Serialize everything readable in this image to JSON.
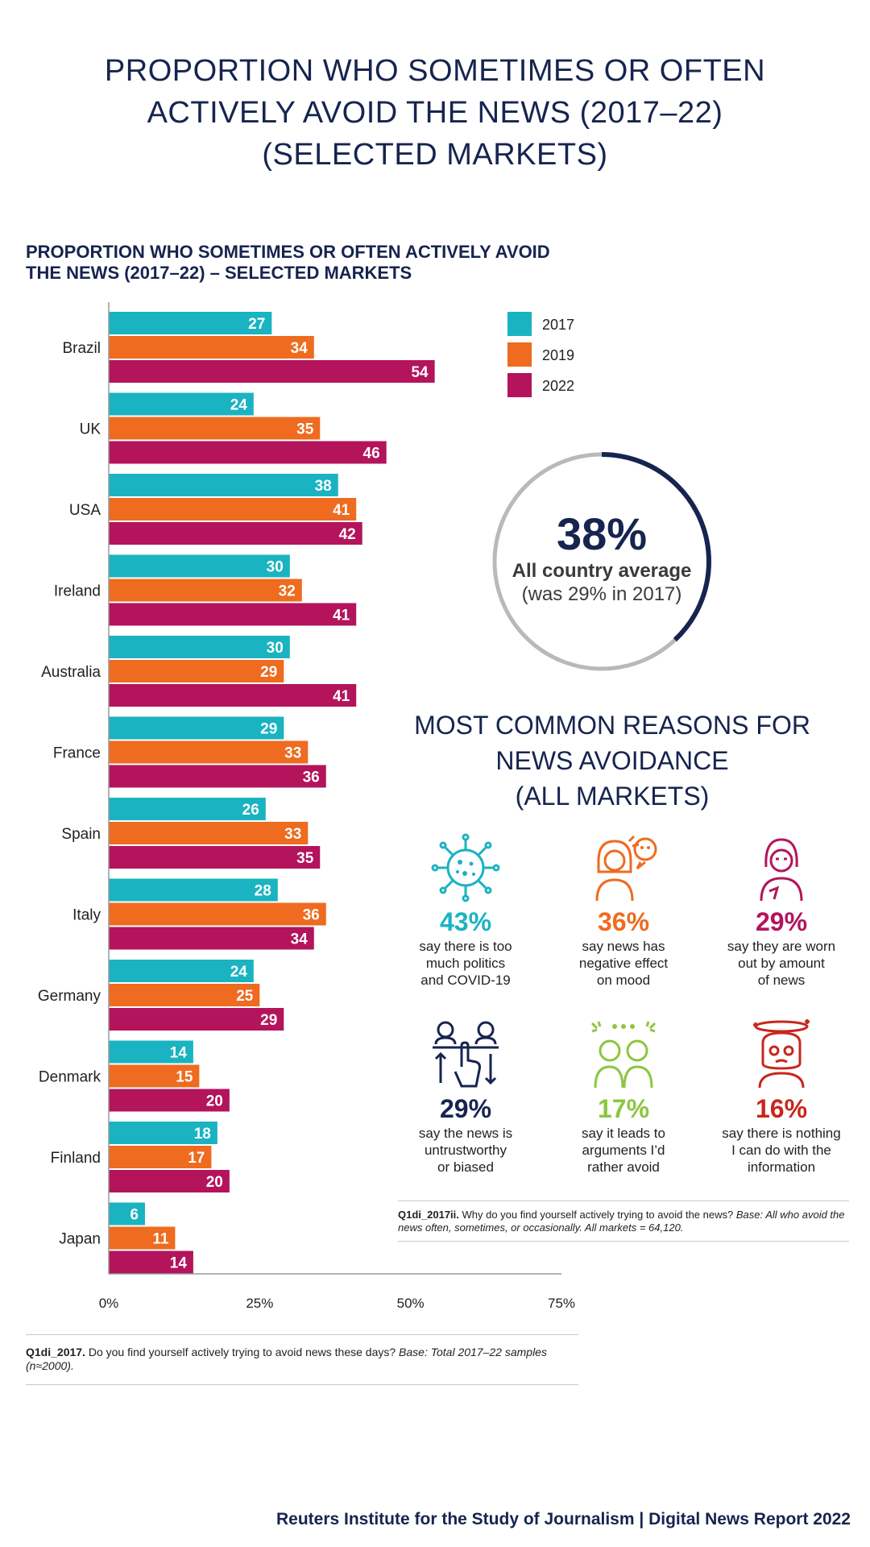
{
  "page": {
    "title_lines": [
      "PROPORTION WHO SOMETIMES OR OFTEN",
      "ACTIVELY AVOID THE NEWS (2017–22)",
      "(SELECTED MARKETS)"
    ],
    "footer": "Reuters Institute for the Study of Journalism | Digital News Report 2022"
  },
  "chart_data": {
    "type": "bar",
    "orientation": "horizontal",
    "title_lines": [
      "PROPORTION WHO SOMETIMES OR OFTEN ACTIVELY AVOID",
      "THE NEWS (2017–22) – SELECTED MARKETS"
    ],
    "categories": [
      "Brazil",
      "UK",
      "USA",
      "Ireland",
      "Australia",
      "France",
      "Spain",
      "Italy",
      "Germany",
      "Denmark",
      "Finland",
      "Japan"
    ],
    "series": [
      {
        "name": "2017",
        "color": "#1ab3c1",
        "values": [
          27,
          24,
          38,
          30,
          30,
          29,
          26,
          28,
          24,
          14,
          18,
          6
        ]
      },
      {
        "name": "2019",
        "color": "#ee6b1f",
        "values": [
          34,
          35,
          41,
          32,
          29,
          33,
          33,
          36,
          25,
          15,
          17,
          11
        ]
      },
      {
        "name": "2022",
        "color": "#b3145c",
        "values": [
          54,
          46,
          42,
          41,
          41,
          36,
          35,
          34,
          29,
          20,
          20,
          14
        ]
      }
    ],
    "xlim": [
      0,
      75
    ],
    "x_ticks": [
      "0%",
      "25%",
      "50%",
      "75%"
    ],
    "legend_position": "top-right",
    "data_labels": true,
    "grid": false
  },
  "average": {
    "value": "38%",
    "fraction": 0.38,
    "label": "All country average",
    "sublabel": "(was 29% in 2017)",
    "ring_color": "#16244f",
    "track_color": "#b9b9b9"
  },
  "reasons": {
    "title_lines": [
      "MOST COMMON REASONS FOR",
      "NEWS AVOIDANCE",
      "(ALL MARKETS)"
    ],
    "items": [
      {
        "pct": "43%",
        "lines": [
          "say there is too",
          "much politics",
          "and COVID-19"
        ],
        "color": "#1ab3c1",
        "icon": "virus-icon"
      },
      {
        "pct": "36%",
        "lines": [
          "say news has",
          "negative effect",
          "on mood"
        ],
        "color": "#ee6b1f",
        "icon": "sad-person-icon"
      },
      {
        "pct": "29%",
        "lines": [
          "say they are worn",
          "out by amount",
          "of news"
        ],
        "color": "#b3145c",
        "icon": "tired-person-icon"
      },
      {
        "pct": "29%",
        "lines": [
          "say the news is",
          "untrustworthy",
          "or biased"
        ],
        "color": "#16244f",
        "icon": "voting-hand-icon"
      },
      {
        "pct": "17%",
        "lines": [
          "say it leads to",
          "arguments I’d",
          "rather avoid"
        ],
        "color": "#8cc63f",
        "icon": "arguing-people-icon"
      },
      {
        "pct": "16%",
        "lines": [
          "say there is nothing",
          "I can do with the",
          "information"
        ],
        "color": "#c8261c",
        "icon": "dizzy-person-icon"
      }
    ]
  },
  "notes": {
    "reasons": {
      "code": "Q1di_2017ii.",
      "question": " Why do you find yourself actively trying to avoid the news? ",
      "base": "Base: All who avoid the news often, sometimes, or occasionally. All markets = 64,120."
    },
    "chart": {
      "code": "Q1di_2017.",
      "question": " Do you find yourself actively trying to avoid news these days? ",
      "base": "Base: Total 2017–22 samples (n≈2000)."
    }
  }
}
